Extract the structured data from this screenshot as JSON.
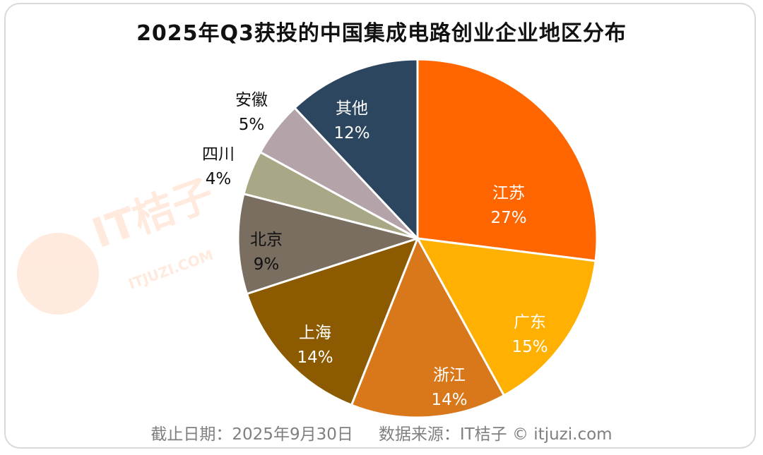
{
  "chart_data": {
    "type": "pie",
    "title": "2025年Q3获投的中国集成电路创业企业地区分布",
    "slices": [
      {
        "name": "江苏",
        "value": 27,
        "label": "27%",
        "color": "#ff6600",
        "text_color": "#ffffff"
      },
      {
        "name": "广东",
        "value": 15,
        "label": "15%",
        "color": "#ffb000",
        "text_color": "#ffffff"
      },
      {
        "name": "浙江",
        "value": 14,
        "label": "14%",
        "color": "#d9781b",
        "text_color": "#ffffff"
      },
      {
        "name": "上海",
        "value": 14,
        "label": "14%",
        "color": "#8c5a00",
        "text_color": "#ffffff"
      },
      {
        "name": "北京",
        "value": 9,
        "label": "9%",
        "color": "#7a6e60",
        "text_color": "#111111"
      },
      {
        "name": "四川",
        "value": 4,
        "label": "4%",
        "color": "#a8a887",
        "text_color": "#111111"
      },
      {
        "name": "安徽",
        "value": 5,
        "label": "5%",
        "color": "#b5a3aa",
        "text_color": "#111111"
      },
      {
        "name": "其他",
        "value": 12,
        "label": "12%",
        "color": "#2b465e",
        "text_color": "#ffffff"
      }
    ],
    "start": "12 o'clock",
    "direction": "clockwise"
  },
  "footer": {
    "date": "截止日期：2025年9月30日",
    "source": "数据来源：IT桔子 © itjuzi.com"
  },
  "watermark": {
    "brand": "IT桔子",
    "url": "ITJUZI.COM"
  }
}
